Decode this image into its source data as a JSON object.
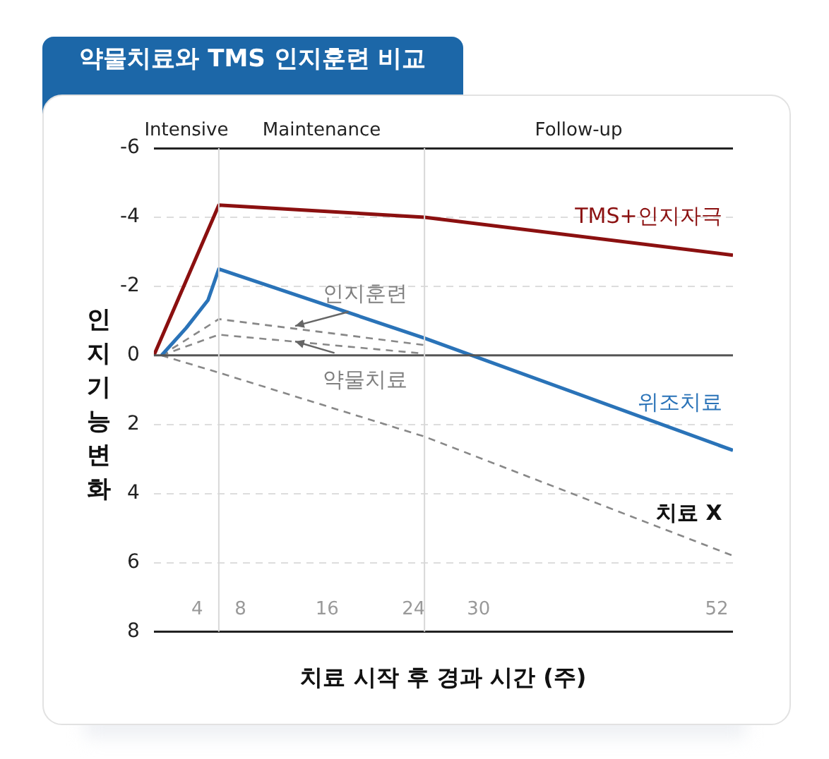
{
  "chart_data": {
    "type": "line",
    "title": "약물치료와 TMS 인지훈련 비교",
    "xlabel": "치료 시작 후 경과 시간 (주)",
    "ylabel": "인지기능변화",
    "xlim": [
      0,
      53.5
    ],
    "xticks": [
      4,
      8,
      16,
      24,
      30,
      52
    ],
    "ylim": [
      8,
      -6
    ],
    "yticks": [
      -6,
      -4,
      -2,
      0,
      2,
      4,
      6,
      8
    ],
    "grid": "y",
    "legend": false,
    "marker": "none",
    "series": [
      {
        "name": "TMS+인지자극",
        "color": "#8b1010",
        "line_style": "solid",
        "x": [
          0,
          6,
          25,
          53.5
        ],
        "values": [
          0,
          -4.35,
          -4.0,
          -2.9
        ]
      },
      {
        "name": "위조치료",
        "color": "#2a73b8",
        "line_style": "solid",
        "x": [
          0.7,
          3,
          5,
          6,
          25,
          53.5
        ],
        "values": [
          0,
          -0.8,
          -1.6,
          -2.5,
          -0.5,
          2.75
        ]
      },
      {
        "name": "인지훈련",
        "color": "#888888",
        "line_style": "dashed",
        "x": [
          0.7,
          6,
          25
        ],
        "values": [
          0,
          -1.05,
          -0.3
        ]
      },
      {
        "name": "약물치료",
        "color": "#888888",
        "line_style": "dashed",
        "x": [
          0.7,
          6,
          25
        ],
        "values": [
          0,
          -0.6,
          -0.05
        ]
      },
      {
        "name": "치료 X",
        "color": "#888888",
        "line_style": "dashed",
        "x": [
          0.7,
          6,
          25,
          53.5
        ],
        "values": [
          0,
          0.5,
          2.35,
          5.8
        ]
      }
    ],
    "ref_lines": [
      {
        "axis": "y",
        "value": 0,
        "color": "#555555"
      },
      {
        "axis": "x",
        "value": 6,
        "color": "#d8d8d8"
      },
      {
        "axis": "x",
        "value": 25,
        "color": "#d8d8d8"
      }
    ],
    "annotations": [
      "Intensive",
      "Maintenance",
      "Follow-up"
    ]
  }
}
